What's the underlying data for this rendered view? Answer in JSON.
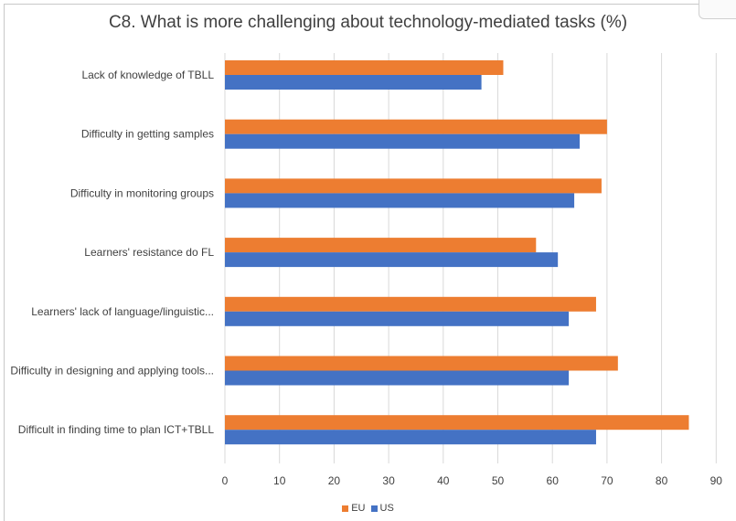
{
  "chart_data": {
    "type": "bar",
    "orientation": "horizontal",
    "title": "C8. What is more challenging about technology-mediated tasks (%)",
    "categories": [
      "Lack of knowledge of TBLL",
      "Difficulty in getting samples",
      "Difficulty in monitoring groups",
      "Learners' resistance do FL",
      "Learners' lack of language/linguistic...",
      "Difficulty in designing and applying tools...",
      "Difficult in finding time to plan ICT+TBLL"
    ],
    "series": [
      {
        "name": "EU",
        "color": "#ed7d31",
        "values": [
          51,
          70,
          69,
          57,
          68,
          72,
          85
        ]
      },
      {
        "name": "US",
        "color": "#4472c4",
        "values": [
          47,
          65,
          64,
          61,
          63,
          63,
          68
        ]
      }
    ],
    "xlim": [
      0,
      90
    ],
    "xticks": [
      0,
      10,
      20,
      30,
      40,
      50,
      60,
      70,
      80,
      90
    ],
    "grid": true,
    "legend_position": "bottom"
  }
}
